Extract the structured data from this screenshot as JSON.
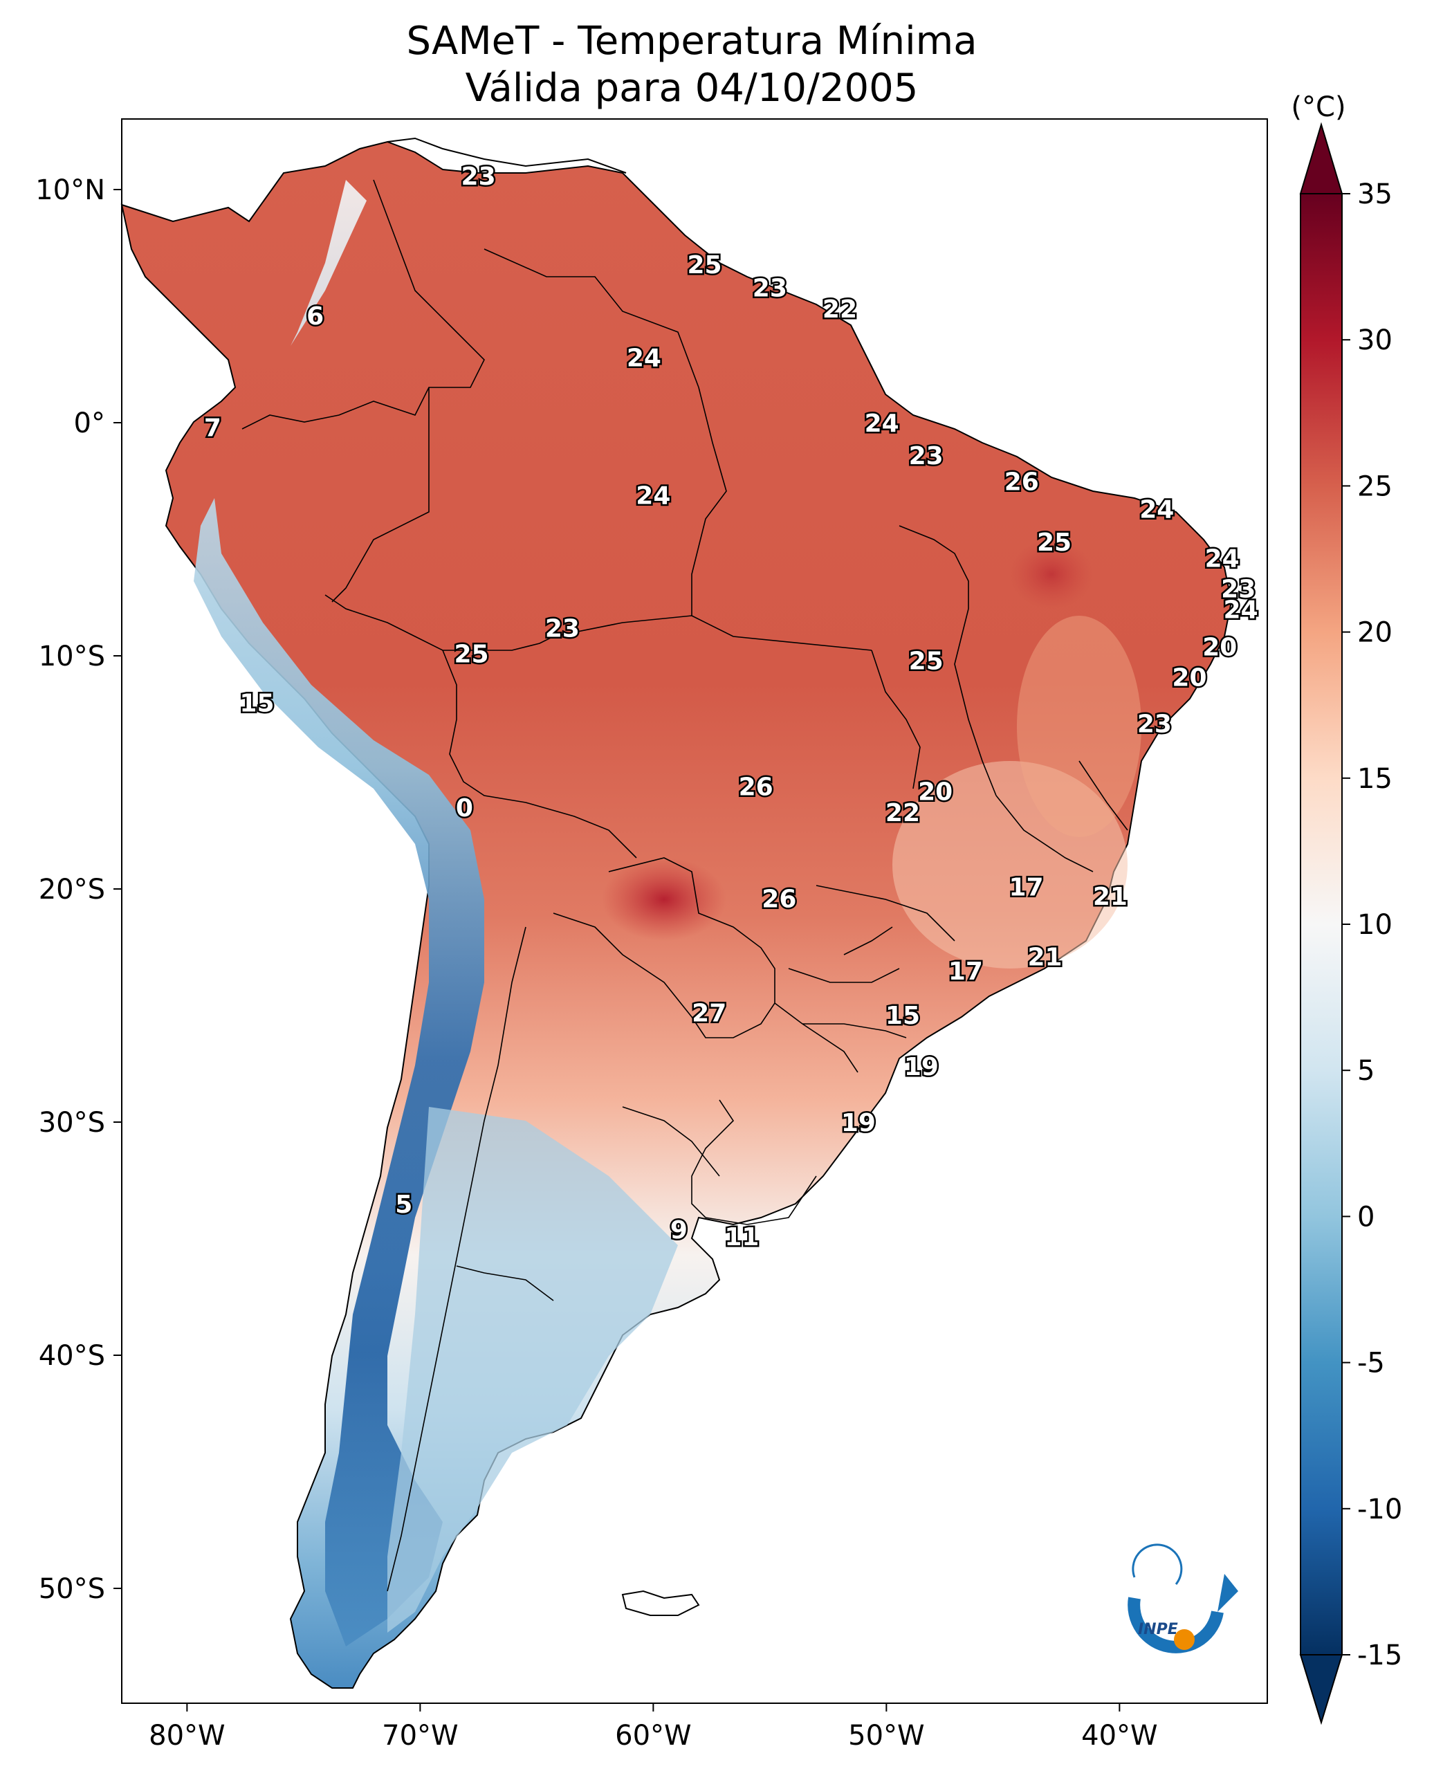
{
  "title_line1": "SAMeT - Temperatura Mínima",
  "title_line2": "Válida para 04/10/2005",
  "colorbar": {
    "unit": "(°C)",
    "ticks": [
      "35",
      "30",
      "25",
      "20",
      "15",
      "10",
      "5",
      "0",
      "-5",
      "-10",
      "-15"
    ],
    "range": [
      -15,
      35
    ],
    "colors_top_to_bottom": [
      "#67001f",
      "#b2182b",
      "#d6604d",
      "#f4a582",
      "#fddbc7",
      "#f7f7f7",
      "#d1e5f0",
      "#92c5de",
      "#4393c3",
      "#2166ac",
      "#053061"
    ]
  },
  "axes": {
    "lat_ticks": [
      "10°N",
      "0°",
      "10°S",
      "20°S",
      "30°S",
      "40°S",
      "50°S"
    ],
    "lon_ticks": [
      "80°W",
      "70°W",
      "60°W",
      "50°W",
      "40°W"
    ]
  },
  "logo_text": "INPE",
  "station_labels": [
    {
      "value": "23",
      "lon": -67.5,
      "lat": 10.6
    },
    {
      "value": "6",
      "lon": -74.5,
      "lat": 4.6
    },
    {
      "value": "7",
      "lon": -78.9,
      "lat": -0.2
    },
    {
      "value": "25",
      "lon": -57.8,
      "lat": 6.8
    },
    {
      "value": "23",
      "lon": -55.0,
      "lat": 5.8
    },
    {
      "value": "22",
      "lon": -52.0,
      "lat": 4.9
    },
    {
      "value": "24",
      "lon": -60.4,
      "lat": 2.8
    },
    {
      "value": "24",
      "lon": -50.2,
      "lat": 0.0
    },
    {
      "value": "23",
      "lon": -48.3,
      "lat": -1.4
    },
    {
      "value": "24",
      "lon": -60.0,
      "lat": -3.1
    },
    {
      "value": "26",
      "lon": -44.2,
      "lat": -2.5
    },
    {
      "value": "24",
      "lon": -38.4,
      "lat": -3.7
    },
    {
      "value": "25",
      "lon": -42.8,
      "lat": -5.1
    },
    {
      "value": "24",
      "lon": -35.6,
      "lat": -5.8
    },
    {
      "value": "23",
      "lon": -34.9,
      "lat": -7.1
    },
    {
      "value": "24",
      "lon": -34.8,
      "lat": -8.0
    },
    {
      "value": "23",
      "lon": -63.9,
      "lat": -8.8
    },
    {
      "value": "25",
      "lon": -67.8,
      "lat": -9.9
    },
    {
      "value": "25",
      "lon": -48.3,
      "lat": -10.2
    },
    {
      "value": "20",
      "lon": -35.7,
      "lat": -9.6
    },
    {
      "value": "20",
      "lon": -37.0,
      "lat": -10.9
    },
    {
      "value": "15",
      "lon": -77.0,
      "lat": -12.0
    },
    {
      "value": "23",
      "lon": -38.5,
      "lat": -12.9
    },
    {
      "value": "26",
      "lon": -55.6,
      "lat": -15.6
    },
    {
      "value": "20",
      "lon": -47.9,
      "lat": -15.8
    },
    {
      "value": "22",
      "lon": -49.3,
      "lat": -16.7
    },
    {
      "value": "0",
      "lon": -68.1,
      "lat": -16.5
    },
    {
      "value": "17",
      "lon": -44.0,
      "lat": -19.9
    },
    {
      "value": "21",
      "lon": -40.4,
      "lat": -20.3
    },
    {
      "value": "26",
      "lon": -54.6,
      "lat": -20.4
    },
    {
      "value": "21",
      "lon": -43.2,
      "lat": -22.9
    },
    {
      "value": "17",
      "lon": -46.6,
      "lat": -23.5
    },
    {
      "value": "15",
      "lon": -49.3,
      "lat": -25.4
    },
    {
      "value": "27",
      "lon": -57.6,
      "lat": -25.3
    },
    {
      "value": "19",
      "lon": -48.5,
      "lat": -27.6
    },
    {
      "value": "19",
      "lon": -51.2,
      "lat": -30.0
    },
    {
      "value": "5",
      "lon": -70.7,
      "lat": -33.5
    },
    {
      "value": "9",
      "lon": -58.9,
      "lat": -34.6
    },
    {
      "value": "11",
      "lon": -56.2,
      "lat": -34.9
    }
  ]
}
